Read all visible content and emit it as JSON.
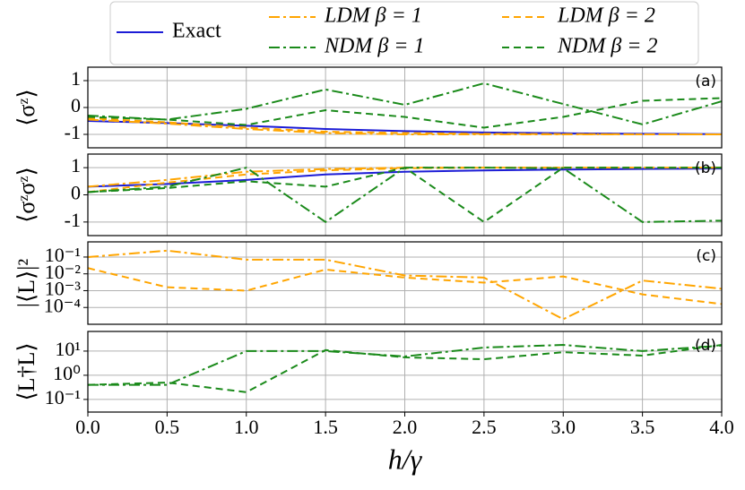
{
  "chart_data": [
    {
      "type": "line",
      "ylabel": "⟨σᶻ⟩",
      "annotation": "(a)",
      "legend": "upper center",
      "grid": true,
      "x": [
        0,
        0.5,
        1,
        1.5,
        2,
        2.5,
        3,
        3.5,
        4
      ],
      "xlim": [
        0,
        4
      ],
      "ylim": [
        -1.5,
        1.5
      ],
      "yticks": [
        1,
        0,
        -1
      ],
      "series": [
        {
          "name": "Exact",
          "color": "#1c1cd6",
          "dash": "solid",
          "values": [
            -0.5,
            -0.58,
            -0.68,
            -0.8,
            -0.88,
            -0.93,
            -0.96,
            -0.98,
            -0.99
          ]
        },
        {
          "name": "LDM β = 1",
          "color": "#ffa500",
          "dash": "dashdot",
          "values": [
            -0.45,
            -0.6,
            -0.8,
            -0.95,
            -1,
            -1,
            -1,
            -1,
            -1
          ]
        },
        {
          "name": "LDM β = 2",
          "color": "#ffa500",
          "dash": "dashed",
          "values": [
            -0.4,
            -0.55,
            -0.75,
            -0.9,
            -0.95,
            -0.98,
            -0.99,
            -1,
            -1
          ]
        },
        {
          "name": "NDM β = 1",
          "color": "#1a8a1a",
          "dash": "dashdot",
          "values": [
            -0.3,
            -0.45,
            -0.05,
            0.67,
            0.1,
            0.9,
            0.13,
            -0.63,
            0.23
          ]
        },
        {
          "name": "NDM β = 2",
          "color": "#1a8a1a",
          "dash": "dashed",
          "values": [
            -0.35,
            -0.45,
            -0.65,
            -0.1,
            -0.35,
            -0.75,
            -0.35,
            0.25,
            0.35
          ]
        }
      ]
    },
    {
      "type": "line",
      "ylabel": "⟨σᶻσᶻ⟩",
      "annotation": "(b)",
      "grid": true,
      "x": [
        0,
        0.5,
        1,
        1.5,
        2,
        2.5,
        3,
        3.5,
        4
      ],
      "xlim": [
        0,
        4
      ],
      "ylim": [
        -1.5,
        1.5
      ],
      "yticks": [
        1,
        0,
        -1
      ],
      "series": [
        {
          "name": "Exact",
          "color": "#1c1cd6",
          "dash": "solid",
          "values": [
            0.3,
            0.4,
            0.55,
            0.75,
            0.85,
            0.9,
            0.93,
            0.95,
            0.97
          ]
        },
        {
          "name": "LDM β = 1",
          "color": "#ffa500",
          "dash": "dashdot",
          "values": [
            0.3,
            0.55,
            0.85,
            0.95,
            1,
            1,
            1,
            1,
            1
          ]
        },
        {
          "name": "LDM β = 2",
          "color": "#ffa500",
          "dash": "dashed",
          "values": [
            0.1,
            0.45,
            0.75,
            0.9,
            0.98,
            1,
            1,
            1,
            1
          ]
        },
        {
          "name": "NDM β = 1",
          "color": "#1a8a1a",
          "dash": "dashdot",
          "values": [
            0.1,
            0.3,
            1,
            -1,
            1,
            1,
            0.98,
            -1,
            -0.95
          ]
        },
        {
          "name": "NDM β = 2",
          "color": "#1a8a1a",
          "dash": "dashed",
          "values": [
            0.1,
            0.25,
            0.5,
            0.3,
            1,
            -1,
            1,
            1,
            1
          ]
        }
      ]
    },
    {
      "type": "line",
      "ylabel": "|⟨L⟩|²",
      "annotation": "(c)",
      "grid": true,
      "log": true,
      "x": [
        0,
        0.5,
        1,
        1.5,
        2,
        2.5,
        3,
        3.5,
        4
      ],
      "xlim": [
        0,
        4
      ],
      "ylim": [
        1e-05,
        0.8
      ],
      "yticks": [
        {
          "value": 0.1,
          "label": "10⁻¹"
        },
        {
          "value": 0.01,
          "label": "10⁻²"
        },
        {
          "value": 0.001,
          "label": "10⁻³"
        },
        {
          "value": 0.0001,
          "label": "10⁻⁴"
        }
      ],
      "series": [
        {
          "name": "LDM β = 1",
          "color": "#ffa500",
          "dash": "dashdot",
          "values": [
            0.1,
            0.24,
            0.07,
            0.07,
            0.008,
            0.006,
            2e-05,
            0.004,
            0.0013
          ]
        },
        {
          "name": "LDM β = 2",
          "color": "#ffa500",
          "dash": "dashed",
          "values": [
            0.022,
            0.0016,
            0.001,
            0.018,
            0.006,
            0.003,
            0.007,
            0.0006,
            0.00016
          ]
        }
      ]
    },
    {
      "type": "line",
      "ylabel": "⟨L†L⟩",
      "annotation": "(d)",
      "grid": true,
      "log": true,
      "xlabel": "h/γ",
      "x": [
        0,
        0.5,
        1,
        1.5,
        2,
        2.5,
        3,
        3.5,
        4
      ],
      "xlim": [
        0,
        4
      ],
      "ylim": [
        0.03,
        65
      ],
      "yticks": [
        {
          "value": 10,
          "label": "10¹"
        },
        {
          "value": 1,
          "label": "10⁰"
        },
        {
          "value": 0.1,
          "label": "10⁻¹"
        }
      ],
      "xticks": [
        {
          "value": 0,
          "label": "0.0"
        },
        0.5,
        {
          "value": 1,
          "label": "1.0"
        },
        1.5,
        {
          "value": 2,
          "label": "2.0"
        },
        2.5,
        {
          "value": 3,
          "label": "3.0"
        },
        3.5,
        {
          "value": 4,
          "label": "4.0"
        }
      ],
      "series": [
        {
          "name": "NDM β = 1",
          "color": "#1a8a1a",
          "dash": "dashdot",
          "values": [
            0.4,
            0.4,
            10,
            10,
            6,
            14,
            18,
            10,
            17
          ]
        },
        {
          "name": "NDM β = 2",
          "color": "#1a8a1a",
          "dash": "dashed",
          "values": [
            0.4,
            0.5,
            0.2,
            11,
            5.5,
            4.6,
            9,
            6.5,
            18
          ]
        }
      ]
    }
  ]
}
